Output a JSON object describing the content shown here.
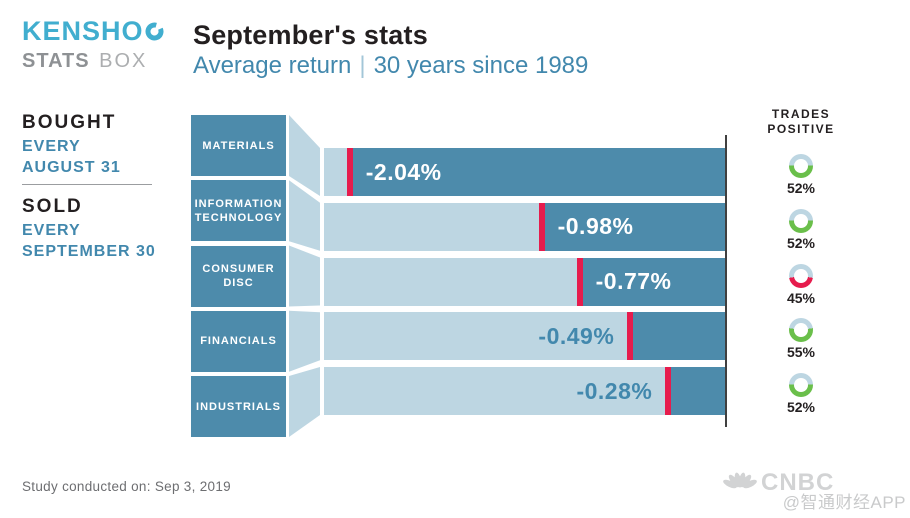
{
  "logo": {
    "brand": "KENSHO",
    "sub_bold": "STATS",
    "sub_light": "BOX"
  },
  "header": {
    "title": "September's stats",
    "subtitle_metric": "Average return",
    "subtitle_separator": "|",
    "subtitle_period": "30 years since 1989"
  },
  "sidebar": {
    "bought_label": "BOUGHT",
    "bought_lines": [
      "EVERY",
      "AUGUST 31"
    ],
    "sold_label": "SOLD",
    "sold_lines": [
      "EVERY",
      "SEPTEMBER 30"
    ]
  },
  "trades_header_lines": [
    "TRADES",
    "POSITIVE"
  ],
  "chart_data": {
    "type": "bar",
    "orientation": "horizontal",
    "title": "September's stats — Average return, 30 years since 1989",
    "categories": [
      "MATERIALS",
      "INFORMATION TECHNOLOGY",
      "CONSUMER DISC",
      "FINANCIALS",
      "INDUSTRIALS"
    ],
    "series": [
      {
        "name": "Average return (%)",
        "values": [
          -2.04,
          -0.98,
          -0.77,
          -0.49,
          -0.28
        ]
      },
      {
        "name": "Trades positive (%)",
        "values": [
          52,
          52,
          45,
          55,
          52
        ]
      }
    ],
    "value_labels": [
      "-2.04%",
      "-0.98%",
      "-0.77%",
      "-0.49%",
      "-0.28%"
    ],
    "trades_labels": [
      "52%",
      "52%",
      "45%",
      "55%",
      "52%"
    ],
    "xlim": [
      -2.18,
      0.04
    ],
    "grid": false,
    "legend": false
  },
  "footer": {
    "study_note": "Study conducted on: Sep 3, 2019",
    "network": "CNBC",
    "watermark": "@智通财经APP"
  },
  "colors": {
    "brand_teal": "#41aecf",
    "dark_teal": "#4d8bab",
    "light_blue": "#bdd6e2",
    "marker_red": "#e61c4d",
    "positive_green": "#6abf4a",
    "negative_red": "#e61c4d",
    "text_dark": "#231f20",
    "teal_text": "#4288ad",
    "gray_text": "#6d6e71",
    "axis_dark": "#404040",
    "cnbc_gray": "#d2d3d4",
    "watermark_gray": "#c9cacb"
  }
}
